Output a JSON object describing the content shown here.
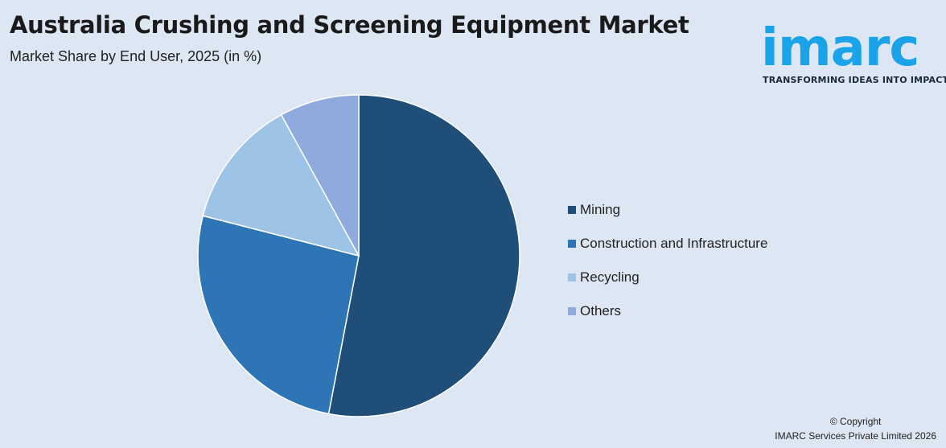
{
  "header": {
    "title": "Australia Crushing and Screening Equipment Market",
    "subtitle": "Market Share by End User, 2025 (in %)"
  },
  "logo": {
    "wordmark": "imarc",
    "tagline": "TRANSFORMING IDEAS INTO IMPACT",
    "color": "#1aa3e8"
  },
  "chart_data": {
    "type": "pie",
    "title": "Australia Crushing and Screening Equipment Market",
    "subtitle": "Market Share by End User, 2025 (in %)",
    "categories": [
      "Mining",
      "Construction and Infrastructure",
      "Recycling",
      "Others"
    ],
    "values": [
      53,
      26,
      13,
      8
    ],
    "colors": [
      "#1f4e79",
      "#2e75b6",
      "#9dc3e6",
      "#8faadc"
    ],
    "legend_position": "right"
  },
  "footer": {
    "copyright_line1": "© Copyright",
    "copyright_line2": "IMARC Services Private Limited 2026"
  }
}
